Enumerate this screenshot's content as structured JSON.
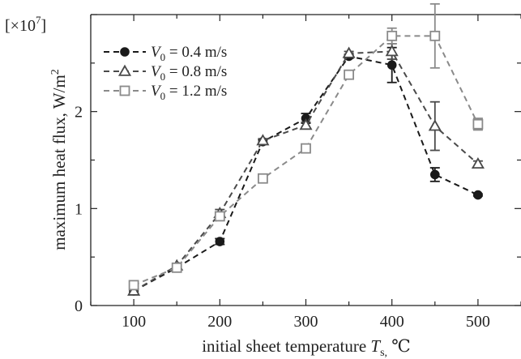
{
  "chart_data": {
    "type": "line",
    "xlabel": "initial sheet temperature T_s, ℃",
    "xlabel_parts": {
      "base": "initial sheet temperature ",
      "symbol": "T",
      "subscript": "s,",
      "unit": " ℃"
    },
    "ylabel": "maximum heat flux,  W/m²",
    "ylabel_parts": {
      "base": "maximum heat flux,  W/m",
      "superscript": "2"
    },
    "y_multiplier": "[×10⁷]",
    "y_multiplier_parts": {
      "base": "[×10",
      "superscript": "7",
      "close": "]"
    },
    "xlim": [
      50,
      550
    ],
    "ylim": [
      0,
      3.0
    ],
    "x_ticks": [
      100,
      200,
      300,
      400,
      500
    ],
    "x_tick_labels": [
      "100",
      "200",
      "300",
      "400",
      "500"
    ],
    "y_ticks": [
      0,
      1,
      2
    ],
    "y_tick_labels": [
      "0",
      "1",
      "2"
    ],
    "x": [
      100,
      150,
      200,
      250,
      300,
      350,
      400,
      450,
      500
    ],
    "grid": false,
    "legend_position": "top-left",
    "series": [
      {
        "name": "V0 = 0.4 m/s",
        "label_parts": {
          "symbol": "V",
          "subscript": "0",
          "rest": " = 0.4 m/s"
        },
        "marker": "circle-filled",
        "color": "#1a1a1a",
        "values": [
          0.15,
          0.39,
          0.66,
          1.69,
          1.93,
          2.57,
          2.48,
          1.35,
          1.14
        ],
        "errors": [
          0.01,
          0.01,
          0.03,
          0.02,
          0.05,
          0.02,
          0.18,
          0.07,
          0.01
        ]
      },
      {
        "name": "V0 = 0.8 m/s",
        "label_parts": {
          "symbol": "V",
          "subscript": "0",
          "rest": " = 0.8 m/s"
        },
        "marker": "triangle-open",
        "color": "#4a4a4a",
        "values": [
          0.15,
          0.41,
          0.95,
          1.7,
          1.86,
          2.6,
          2.62,
          1.85,
          1.46
        ],
        "errors": [
          0.01,
          0.01,
          0.04,
          0.02,
          0.03,
          0.02,
          0.08,
          0.25,
          0.03
        ]
      },
      {
        "name": "V0 = 1.2 m/s",
        "label_parts": {
          "symbol": "V",
          "subscript": "0",
          "rest": " = 1.2 m/s"
        },
        "marker": "square-open",
        "color": "#8a8a8a",
        "values": [
          0.21,
          0.39,
          0.92,
          1.31,
          1.62,
          2.38,
          2.78,
          2.78,
          1.87
        ],
        "errors": [
          0.01,
          0.01,
          0.03,
          0.02,
          0.03,
          0.03,
          0.08,
          0.33,
          0.06
        ]
      }
    ]
  }
}
